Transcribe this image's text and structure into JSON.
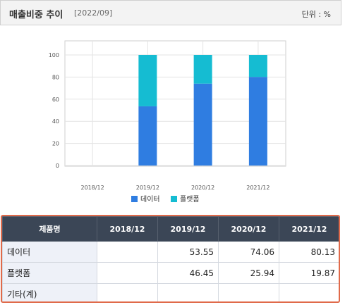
{
  "header": {
    "title": "매출비중 추이",
    "date": "[2022/09]",
    "unit": "단위 : %"
  },
  "chart_data": {
    "type": "bar",
    "stacked": true,
    "categories": [
      "2018/12",
      "2019/12",
      "2020/12",
      "2021/12"
    ],
    "series": [
      {
        "name": "데이터",
        "values": [
          null,
          53.55,
          74.06,
          80.13
        ],
        "color": "#2f7de1"
      },
      {
        "name": "플랫폼",
        "values": [
          null,
          46.45,
          25.94,
          19.87
        ],
        "color": "#15bcd2"
      }
    ],
    "ylim": [
      0,
      100
    ],
    "yticks": [
      0,
      20,
      40,
      60,
      80,
      100
    ],
    "grid": true,
    "legend": "bottom",
    "title": "",
    "xlabel": "",
    "ylabel": ""
  },
  "table": {
    "headers": [
      "제품명",
      "2018/12",
      "2019/12",
      "2020/12",
      "2021/12"
    ],
    "rows": [
      {
        "name": "데이터",
        "values": [
          "",
          "53.55",
          "74.06",
          "80.13"
        ]
      },
      {
        "name": "플랫폼",
        "values": [
          "",
          "46.45",
          "25.94",
          "19.87"
        ]
      },
      {
        "name": "기타(계)",
        "values": [
          "",
          "",
          "",
          ""
        ]
      }
    ]
  }
}
